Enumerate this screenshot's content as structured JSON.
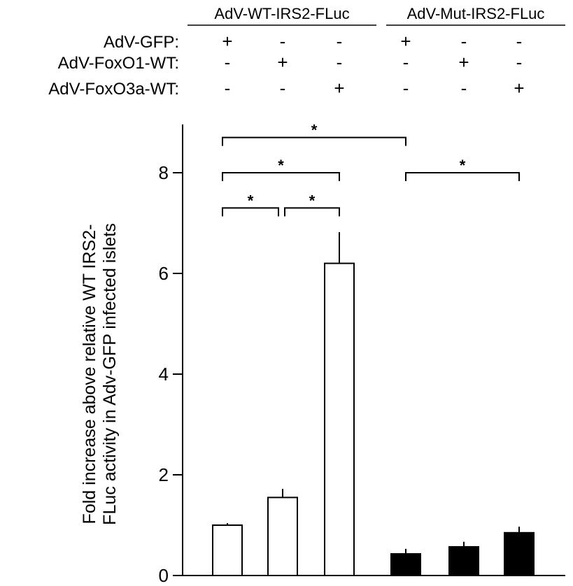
{
  "chart_data": {
    "type": "bar",
    "groups": [
      {
        "label": "AdV-WT-IRS2-FLuc",
        "bar_indices": [
          0,
          1,
          2
        ]
      },
      {
        "label": "AdV-Mut-IRS2-FLuc",
        "bar_indices": [
          3,
          4,
          5
        ]
      }
    ],
    "condition_rows": [
      {
        "label": "AdV-GFP:",
        "signs": [
          "+",
          "-",
          "-",
          "+",
          "-",
          "-"
        ]
      },
      {
        "label": "AdV-FoxO1-WT:",
        "signs": [
          "-",
          "+",
          "-",
          "-",
          "+",
          "-"
        ]
      },
      {
        "label": "AdV-FoxO3a-WT:",
        "signs": [
          "-",
          "-",
          "+",
          "-",
          "-",
          "+"
        ]
      }
    ],
    "bars": [
      {
        "value": 1.0,
        "error": 0.04,
        "fill": "#ffffff"
      },
      {
        "value": 1.55,
        "error": 0.17,
        "fill": "#ffffff"
      },
      {
        "value": 6.2,
        "error": 0.62,
        "fill": "#ffffff"
      },
      {
        "value": 0.43,
        "error": 0.1,
        "fill": "#000000"
      },
      {
        "value": 0.57,
        "error": 0.1,
        "fill": "#000000"
      },
      {
        "value": 0.85,
        "error": 0.12,
        "fill": "#000000"
      }
    ],
    "ylabel": "Fold increase above relative WT IRS2-FLuc activity in Adv-GFP infected islets",
    "ylabel_lines": [
      "Fold increase above relative WT IRS2-",
      "FLuc activity in Adv-GFP infected islets"
    ],
    "ylim": [
      0,
      8.8
    ],
    "yticks": [
      0,
      2,
      4,
      6,
      8
    ],
    "significance": [
      {
        "from": 0,
        "to": 3,
        "level": 8.7,
        "label": "*"
      },
      {
        "from": 0,
        "to": 2,
        "level": 8.0,
        "label": "*"
      },
      {
        "from": 3,
        "to": 5,
        "level": 8.0,
        "label": "*"
      },
      {
        "from": 0,
        "to": 1,
        "level": 7.3,
        "label": "*"
      },
      {
        "from": 1,
        "to": 2,
        "level": 7.3,
        "label": "*"
      }
    ],
    "grid": false,
    "legend": "none"
  }
}
